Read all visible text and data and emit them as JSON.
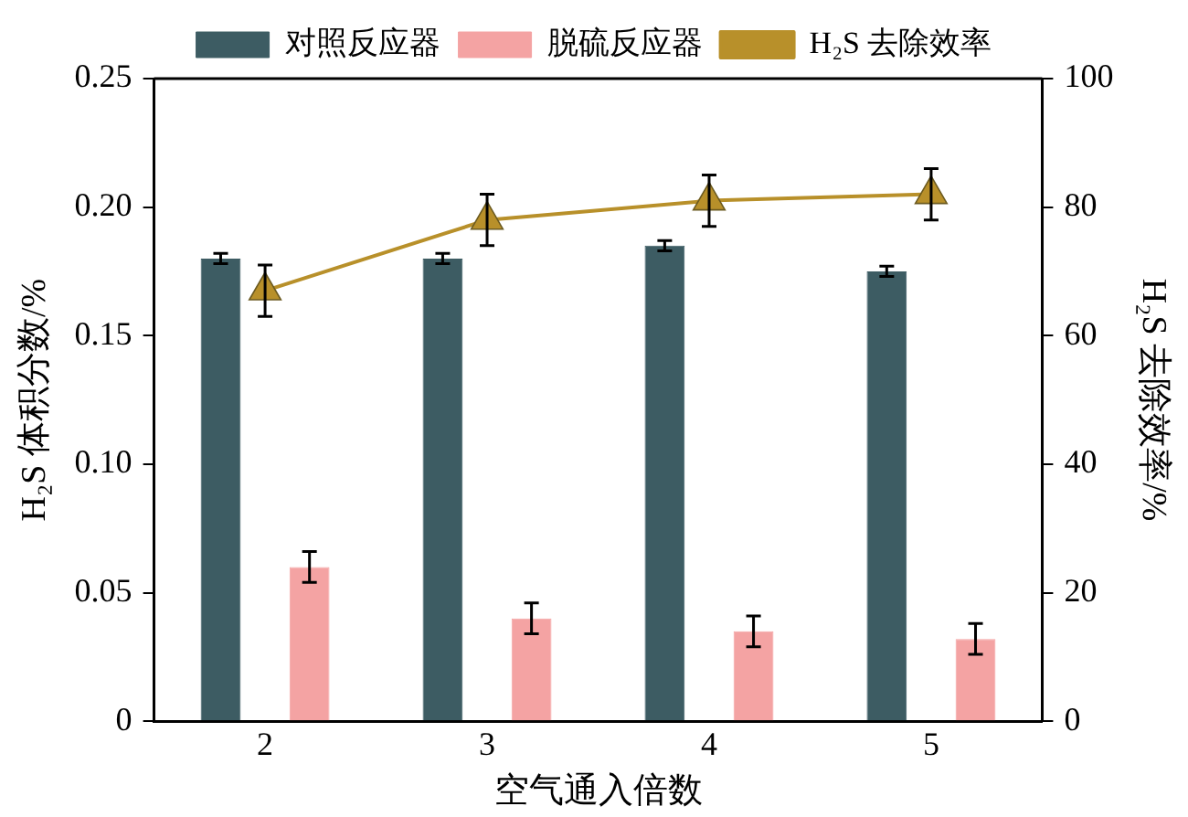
{
  "chart_data": {
    "type": "bar",
    "xlabel": "空气通入倍数",
    "ylabel": "H₂S 体积分数/%",
    "y2label": "H₂S 去除效率/%",
    "categories": [
      "2",
      "3",
      "4",
      "5"
    ],
    "series": [
      {
        "name": "对照反应器",
        "color": "#3d5c63",
        "values": [
          0.18,
          0.18,
          0.185,
          0.175
        ],
        "errors": [
          0.002,
          0.002,
          0.002,
          0.002
        ]
      },
      {
        "name": "脱硫反应器",
        "color": "#f4a3a3",
        "values": [
          0.06,
          0.04,
          0.035,
          0.032
        ],
        "errors": [
          0.006,
          0.006,
          0.006,
          0.006
        ]
      },
      {
        "name": "H₂S 去除效率",
        "type": "line",
        "axis": "y2",
        "color": "#b8902a",
        "marker": "triangle",
        "values": [
          67,
          78,
          81,
          82
        ],
        "errors": [
          4,
          4,
          4,
          4
        ]
      }
    ],
    "ylim": [
      0,
      0.25
    ],
    "yticks": [
      0,
      0.05,
      {
        "value": 0.1,
        "label": "0.10"
      },
      {
        "value": 0.15,
        "label": "0.15"
      },
      {
        "value": 0.2,
        "label": "0.20"
      },
      {
        "value": 0.25,
        "label": "0.25"
      }
    ],
    "y2lim": [
      0,
      100
    ],
    "y2ticks": [
      0,
      20,
      40,
      60,
      80,
      100
    ],
    "grid": false,
    "legend": "top"
  }
}
